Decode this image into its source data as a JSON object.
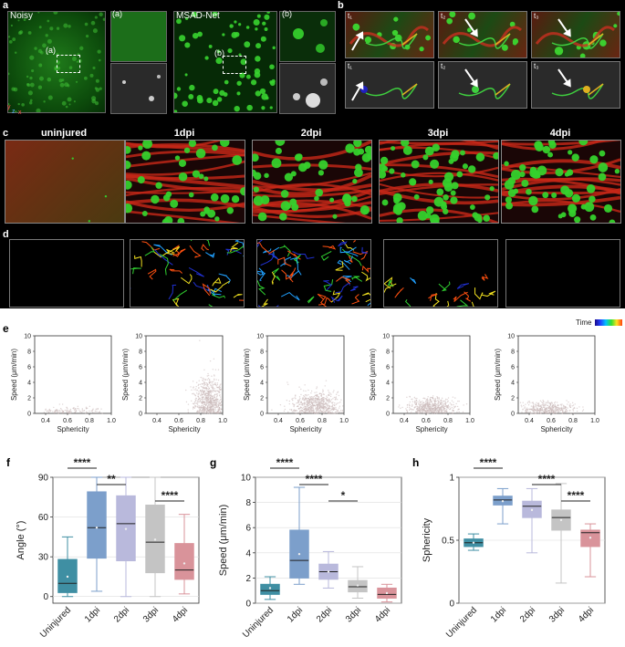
{
  "panels": {
    "a": {
      "label": "a",
      "noisy_label": "Noisy",
      "msad_label": "MSAD-Net",
      "inset_a_tag": "(a)",
      "inset_b_tag": "(b)",
      "axis_y": "y",
      "axis_z": "z",
      "axis_x": "x"
    },
    "b": {
      "label": "b",
      "frames_top": [
        "t₁",
        "t₂",
        "t₃"
      ],
      "frames_bottom": [
        "t₁",
        "t₂",
        "t₃"
      ]
    },
    "c": {
      "label": "c",
      "conditions": [
        "uninjured",
        "1dpi",
        "2dpi",
        "3dpi",
        "4dpi"
      ]
    },
    "d": {
      "label": "d",
      "colorbar_label": "Time"
    },
    "e": {
      "label": "e",
      "y_label": "Speed (μm/min)",
      "x_label": "Sphericity",
      "y_ticks": [
        "0",
        "2",
        "4",
        "6",
        "8",
        "10"
      ],
      "x_ticks": [
        "0.4",
        "0.6",
        "0.8",
        "1.0"
      ]
    },
    "f": {
      "label": "f"
    },
    "g": {
      "label": "g"
    },
    "h": {
      "label": "h"
    }
  },
  "colors": {
    "uninjured": "#3f8fa3",
    "1dpi": "#7c9fcb",
    "2dpi": "#b9b9dc",
    "3dpi": "#c4c4c4",
    "4dpi": "#d9939a",
    "scatter_point": "#e8dcdc",
    "cell_green": "#33d62c",
    "vessel_red": "#d42a1e"
  },
  "chart_data": [
    {
      "id": "f",
      "type": "box",
      "categories": [
        "Uninjured",
        "1dpi",
        "2dpi",
        "3dpi",
        "4dpi"
      ],
      "ylabel": "Angle (°)",
      "ylim": [
        -5,
        90
      ],
      "yticks": [
        0,
        30,
        60,
        90
      ],
      "boxes": [
        {
          "min": 0,
          "q1": 3,
          "median": 10,
          "q3": 28,
          "max": 45,
          "mean": 15
        },
        {
          "min": 4,
          "q1": 29,
          "median": 52,
          "q3": 79,
          "max": 90,
          "mean": 52
        },
        {
          "min": 0,
          "q1": 27,
          "median": 55,
          "q3": 76,
          "max": 90,
          "mean": 51
        },
        {
          "min": 0,
          "q1": 18,
          "median": 41,
          "q3": 69,
          "max": 90,
          "mean": 43
        },
        {
          "min": 2,
          "q1": 13,
          "median": 20,
          "q3": 40,
          "max": 62,
          "mean": 25
        }
      ],
      "significance": [
        {
          "from": 0,
          "to": 1,
          "text": "****"
        },
        {
          "from": 1,
          "to": 2,
          "text": "**"
        },
        {
          "from": 3,
          "to": 4,
          "text": "****"
        }
      ]
    },
    {
      "id": "g",
      "type": "box",
      "categories": [
        "Uninjured",
        "1dpi",
        "2dpi",
        "3dpi",
        "4dpi"
      ],
      "ylabel": "Speed (μm/min)",
      "ylim": [
        0,
        10
      ],
      "yticks": [
        0,
        2,
        4,
        6,
        8,
        10
      ],
      "boxes": [
        {
          "min": 0.3,
          "q1": 0.7,
          "median": 1.0,
          "q3": 1.5,
          "max": 2.1,
          "mean": 1.2
        },
        {
          "min": 1.5,
          "q1": 2.0,
          "median": 3.4,
          "q3": 5.8,
          "max": 9.2,
          "mean": 3.9
        },
        {
          "min": 1.2,
          "q1": 1.9,
          "median": 2.5,
          "q3": 3.1,
          "max": 4.1,
          "mean": 2.5
        },
        {
          "min": 0.4,
          "q1": 0.9,
          "median": 1.3,
          "q3": 1.8,
          "max": 2.9,
          "mean": 1.4
        },
        {
          "min": 0.1,
          "q1": 0.4,
          "median": 0.7,
          "q3": 1.2,
          "max": 1.5,
          "mean": 0.8
        }
      ],
      "significance": [
        {
          "from": 0,
          "to": 1,
          "text": "****"
        },
        {
          "from": 1,
          "to": 2,
          "text": "****"
        },
        {
          "from": 2,
          "to": 3,
          "text": "*"
        }
      ]
    },
    {
      "id": "h",
      "type": "box",
      "categories": [
        "Uninjured",
        "1dpi",
        "2dpi",
        "3dpi",
        "4dpi"
      ],
      "ylabel": "Sphericity",
      "ylim": [
        0,
        1.0
      ],
      "yticks": [
        0,
        0.5,
        1.0
      ],
      "boxes": [
        {
          "min": 0.42,
          "q1": 0.45,
          "median": 0.48,
          "q3": 0.51,
          "max": 0.55,
          "mean": 0.48
        },
        {
          "min": 0.63,
          "q1": 0.78,
          "median": 0.82,
          "q3": 0.85,
          "max": 0.91,
          "mean": 0.81
        },
        {
          "min": 0.4,
          "q1": 0.68,
          "median": 0.77,
          "q3": 0.81,
          "max": 0.91,
          "mean": 0.74
        },
        {
          "min": 0.16,
          "q1": 0.58,
          "median": 0.68,
          "q3": 0.74,
          "max": 0.95,
          "mean": 0.66
        },
        {
          "min": 0.21,
          "q1": 0.45,
          "median": 0.56,
          "q3": 0.58,
          "max": 0.63,
          "mean": 0.52
        }
      ],
      "significance": [
        {
          "from": 0,
          "to": 1,
          "text": "****"
        },
        {
          "from": 2,
          "to": 3,
          "text": "****"
        },
        {
          "from": 3,
          "to": 4,
          "text": "****"
        }
      ]
    },
    {
      "id": "e",
      "type": "scatter",
      "series": [
        "uninjured",
        "1dpi",
        "2dpi",
        "3dpi",
        "4dpi"
      ],
      "xlabel": "Sphericity",
      "ylabel": "Speed (μm/min)",
      "xlim": [
        0.3,
        1.0
      ],
      "ylim": [
        0,
        10
      ],
      "clusters": [
        {
          "cx": 0.6,
          "cy": 0.3,
          "sx": 0.15,
          "sy": 0.3,
          "n": 120
        },
        {
          "cx": 0.88,
          "cy": 1.6,
          "sx": 0.07,
          "sy": 1.5,
          "n": 700
        },
        {
          "cx": 0.75,
          "cy": 1.0,
          "sx": 0.12,
          "sy": 0.9,
          "n": 650
        },
        {
          "cx": 0.65,
          "cy": 0.8,
          "sx": 0.11,
          "sy": 0.7,
          "n": 550
        },
        {
          "cx": 0.57,
          "cy": 0.5,
          "sx": 0.12,
          "sy": 0.5,
          "n": 400
        }
      ]
    }
  ]
}
